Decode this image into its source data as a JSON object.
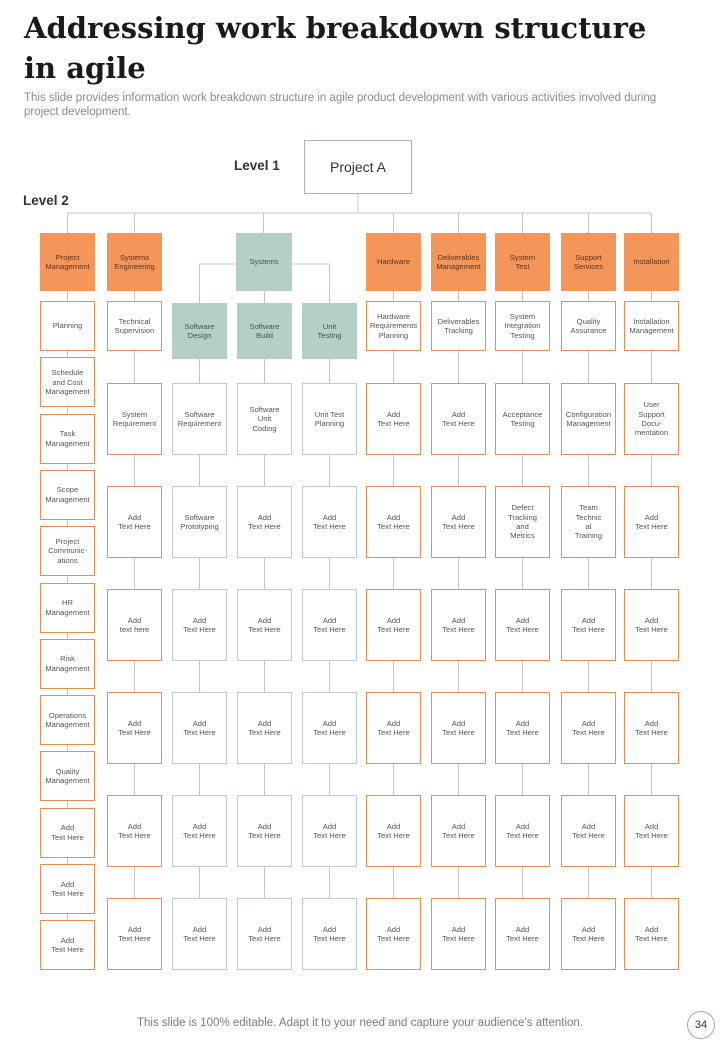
{
  "title": "Addressing work breakdown structure in agile",
  "subtitle": "This slide provides information work breakdown structure in agile product development with various activities involved during project development.",
  "level1_label": "Level 1",
  "level2_label": "Level 2",
  "root_label": "Project A",
  "left_column": {
    "head": "Project\nManagement",
    "items": [
      "Planning",
      "Schedule\nand Cost\nManagement",
      "Task\nManagement",
      "Scope\nManagement",
      "Project\nCommunic-\nations",
      "HR\nManagement",
      "Risk\nManagement",
      "Operations\nManagement",
      "Quality\nManagement",
      "Add\nText Here",
      "Add\nText Here",
      "Add\nText Here"
    ]
  },
  "systems_group": {
    "label": "Systems"
  },
  "columns": [
    {
      "head": "Systems\nEngineering",
      "theme": "orange",
      "items": [
        "Technical\nSupervision",
        "System\nRequirement",
        "Add\nText Here",
        "Add\ntext here",
        "Add\nText Here",
        "Add\nText Here",
        "Add\nText Here"
      ]
    },
    {
      "head": "Software\nDesign",
      "theme": "teal",
      "items": [
        "Software\nRequirement",
        "Software\nPrototyping",
        "Add\nText Here",
        "Add\nText Here",
        "Add\nText Here",
        "Add\nText Here"
      ]
    },
    {
      "head": "Software\nBuild",
      "theme": "teal",
      "items": [
        "Software\nUnit\nCoding",
        "Add\nText Here",
        "Add\nText Here",
        "Add\nText Here",
        "Add\nText Here",
        "Add\nText Here"
      ]
    },
    {
      "head": "Unit\nTesting",
      "theme": "teal",
      "items": [
        "Unit Test\nPlanning",
        "Add\nText Here",
        "Add\nText Here",
        "Add\nText Here",
        "Add\nText Here",
        "Add\nText Here"
      ]
    },
    {
      "head": "Hardware",
      "theme": "orange",
      "items": [
        "Hardware\nRequirements\nPlanning",
        "Add\nText Here",
        "Add\nText Here",
        "Add\nText Here",
        "Add\nText Here",
        "Add\nText Here",
        "Add\nText Here"
      ]
    },
    {
      "head": "Deliverables\nManagement",
      "theme": "orange",
      "items": [
        "Deliverables\nTracking",
        "Add\nText Here",
        "Add\nText Here",
        "Add\nText Here",
        "Add\nText Here",
        "Add\nText Here",
        "Add\nText Here"
      ]
    },
    {
      "head": "System\nTest",
      "theme": "orange",
      "items": [
        "System\nIntegration\nTesting",
        "Acceptance\nTesting",
        "Defect\nTracking\nand\nMetrics",
        "Add\nText Here",
        "Add\nText Here",
        "Add\nText Here",
        "Add\nText Here"
      ]
    },
    {
      "head": "Support\nServices",
      "theme": "orange",
      "items": [
        "Quality\nAssurance",
        "Configuration\nManagement",
        "Team\nTechnic\nal\nTraining",
        "Add\nText Here",
        "Add\nText Here",
        "Add\nText Here",
        "Add\nText Here"
      ]
    },
    {
      "head": "Installation",
      "theme": "orange",
      "items": [
        "Installation\nManagement",
        "User\nSupport\nDocu-\nmentation",
        "Add\nText Here",
        "Add\nText Here",
        "Add\nText Here",
        "Add\nText Here",
        "Add\nText Here"
      ]
    }
  ],
  "footer": "This slide is 100% editable. Adapt it to your need and capture your audience’s attention.",
  "page_number": "34",
  "colors": {
    "orange": "#f4955a",
    "orange_border": "#e98d52",
    "teal": "#b6cfc6",
    "teal_border": "#b9d0c9",
    "line": "#c4c4c4"
  }
}
